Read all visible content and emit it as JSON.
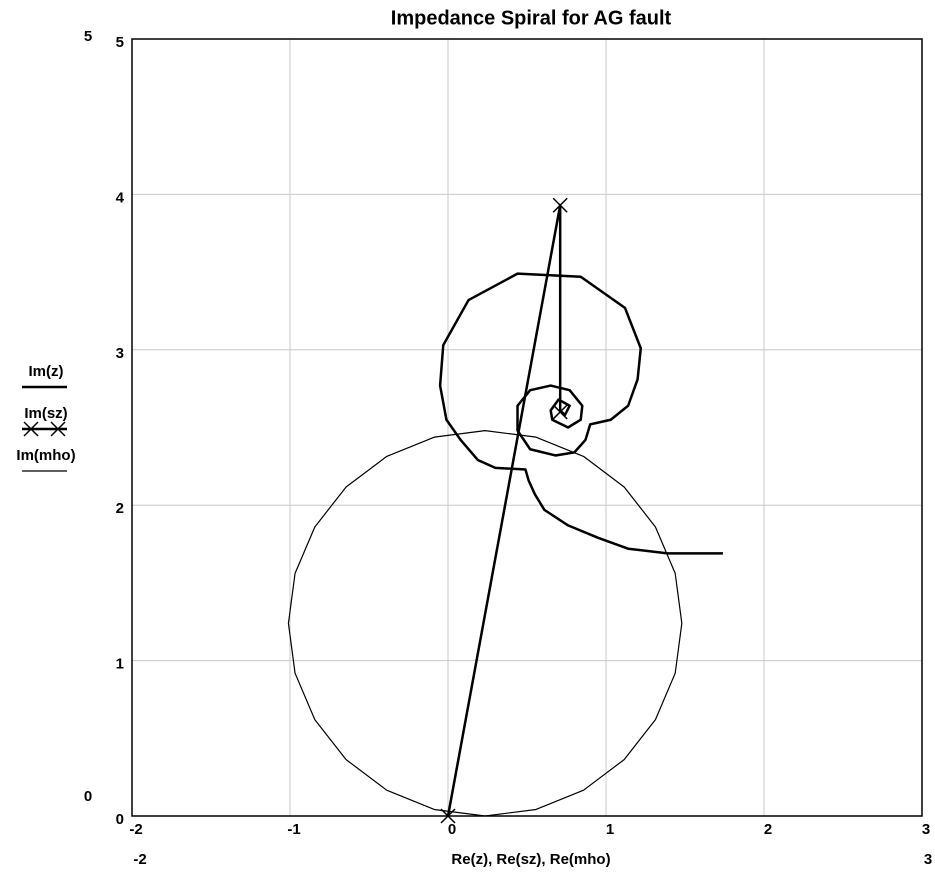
{
  "chart_data": {
    "type": "line",
    "title": "Impedance Spiral for AG fault",
    "xlabel": "Re(z), Re(sz), Re(mho)",
    "xlim": [
      -2,
      3
    ],
    "ylim": [
      0,
      5
    ],
    "xticks": [
      -2,
      -1,
      0,
      1,
      2,
      3
    ],
    "yticks": [
      0,
      1,
      2,
      3,
      4,
      5
    ],
    "grid": true,
    "series": [
      {
        "name": "Im(z)",
        "color": "#000000",
        "linewidth": 2.5,
        "marker": "none",
        "x": [
          1.74,
          1.39,
          1.14,
          0.95,
          0.76,
          0.61,
          0.55,
          0.51,
          0.49,
          0.3,
          0.19,
          0.08,
          -0.01,
          -0.05,
          -0.03,
          0.13,
          0.44,
          0.84,
          1.12,
          1.22,
          1.2,
          1.14,
          1.03,
          0.9,
          0.87,
          0.8,
          0.68,
          0.52,
          0.44,
          0.44,
          0.52,
          0.65,
          0.77,
          0.85,
          0.84,
          0.76,
          0.66,
          0.65,
          0.7,
          0.77,
          0.74,
          0.71
        ],
        "values": [
          1.69,
          1.69,
          1.72,
          1.79,
          1.87,
          1.97,
          2.07,
          2.16,
          2.23,
          2.24,
          2.29,
          2.42,
          2.55,
          2.77,
          3.03,
          3.32,
          3.49,
          3.47,
          3.27,
          3.01,
          2.81,
          2.64,
          2.55,
          2.52,
          2.42,
          2.34,
          2.32,
          2.36,
          2.48,
          2.64,
          2.74,
          2.77,
          2.74,
          2.64,
          2.55,
          2.5,
          2.55,
          2.61,
          2.68,
          2.64,
          2.58,
          2.61
        ]
      },
      {
        "name": "Im(sz)",
        "color": "#000000",
        "linewidth": 2.5,
        "marker": "x",
        "x": [
          0,
          0.71,
          0.71
        ],
        "values": [
          0,
          3.93,
          2.6
        ]
      },
      {
        "name": "Im(mho)",
        "color": "#000000",
        "linewidth": 1.2,
        "marker": "none",
        "x": [
          0.235,
          0.557,
          0.858,
          1.115,
          1.313,
          1.438,
          1.48,
          1.438,
          1.313,
          1.115,
          0.858,
          0.557,
          0.235,
          -0.087,
          -0.388,
          -0.645,
          -0.843,
          -0.968,
          -1.01,
          -0.968,
          -0.843,
          -0.645,
          -0.388,
          -0.087,
          0.235
        ],
        "values": [
          0,
          0.042,
          0.166,
          0.363,
          0.62,
          0.919,
          1.24,
          1.561,
          1.86,
          2.117,
          2.314,
          2.438,
          2.48,
          2.438,
          2.314,
          2.117,
          1.86,
          1.561,
          1.24,
          0.919,
          0.62,
          0.363,
          0.166,
          0.042,
          0
        ]
      }
    ]
  }
}
